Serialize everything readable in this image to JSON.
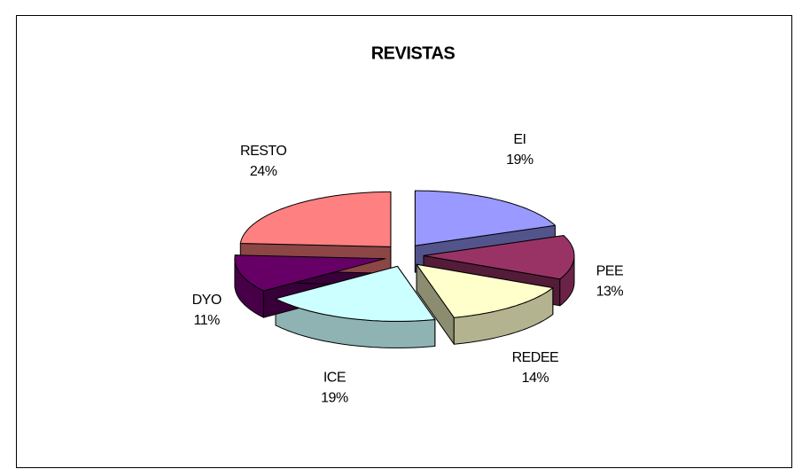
{
  "chart_data": {
    "type": "pie",
    "title": "REVISTAS",
    "categories": [
      "EI",
      "PEE",
      "REDEE",
      "ICE",
      "DYO",
      "RESTO"
    ],
    "values": [
      19,
      13,
      14,
      19,
      11,
      24
    ],
    "value_labels": [
      "19%",
      "13%",
      "14%",
      "19%",
      "11%",
      "24%"
    ],
    "colors": [
      "#9999ff",
      "#993366",
      "#ffffcc",
      "#ccffff",
      "#660066",
      "#ff8080"
    ]
  }
}
